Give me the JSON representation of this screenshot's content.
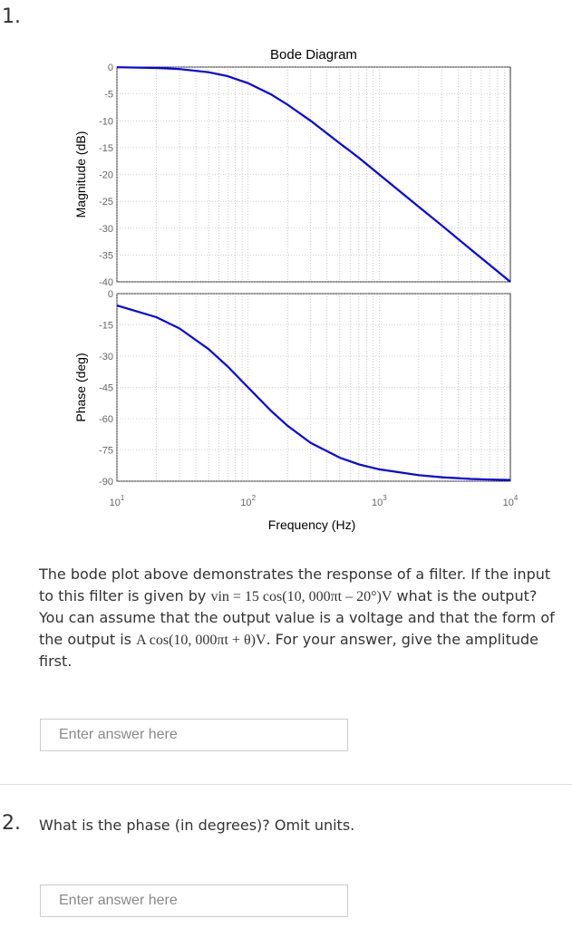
{
  "questions": [
    {
      "number": "1.",
      "text_part1": "The bode plot above demonstrates the response of a filter. If the input to this filter is given by ",
      "math_input": "vin = 15 cos(10, 000πt – 20°)V",
      "text_part2": " what is the output? You can assume that the output value is a voltage and that the form of the output is ",
      "math_output": "A cos(10, 000πt + θ)V",
      "text_part3": ". For your answer, give the amplitude first.",
      "placeholder": "Enter answer here"
    },
    {
      "number": "2.",
      "text": "What is the phase (in degrees)? Omit units.",
      "placeholder": "Enter answer here"
    }
  ],
  "chart_data": {
    "type": "line",
    "title": "Bode Diagram",
    "xlabel": "Frequency (Hz)",
    "x_scale": "log",
    "xlim": [
      10,
      10000
    ],
    "x_tick_labels": [
      "10^1",
      "10^2",
      "10^3",
      "10^4"
    ],
    "grid": true,
    "line_color": "#0000ee",
    "panels": [
      {
        "name": "magnitude",
        "ylabel": "Magnitude (dB)",
        "ylim": [
          -40,
          0
        ],
        "y_ticks": [
          0,
          -5,
          -10,
          -15,
          -20,
          -25,
          -30,
          -35,
          -40
        ],
        "x": [
          10,
          20,
          30,
          50,
          70,
          100,
          150,
          200,
          300,
          500,
          700,
          1000,
          2000,
          3000,
          5000,
          7000,
          10000
        ],
        "y": [
          -0.04,
          -0.17,
          -0.37,
          -0.97,
          -1.7,
          -3.0,
          -5.1,
          -7.0,
          -10.0,
          -14.2,
          -16.9,
          -20.0,
          -26.0,
          -29.5,
          -34.0,
          -36.9,
          -40.0
        ]
      },
      {
        "name": "phase",
        "ylabel": "Phase (deg)",
        "ylim": [
          -90,
          0
        ],
        "y_ticks": [
          0,
          -15,
          -30,
          -45,
          -60,
          -75,
          -90
        ],
        "x": [
          10,
          20,
          30,
          50,
          70,
          100,
          150,
          200,
          300,
          500,
          700,
          1000,
          2000,
          3000,
          5000,
          7000,
          10000
        ],
        "y": [
          -5.7,
          -11.3,
          -16.7,
          -26.6,
          -35.0,
          -45.0,
          -56.3,
          -63.4,
          -71.6,
          -78.7,
          -81.9,
          -84.3,
          -87.1,
          -88.1,
          -88.9,
          -89.2,
          -89.4
        ]
      }
    ]
  }
}
